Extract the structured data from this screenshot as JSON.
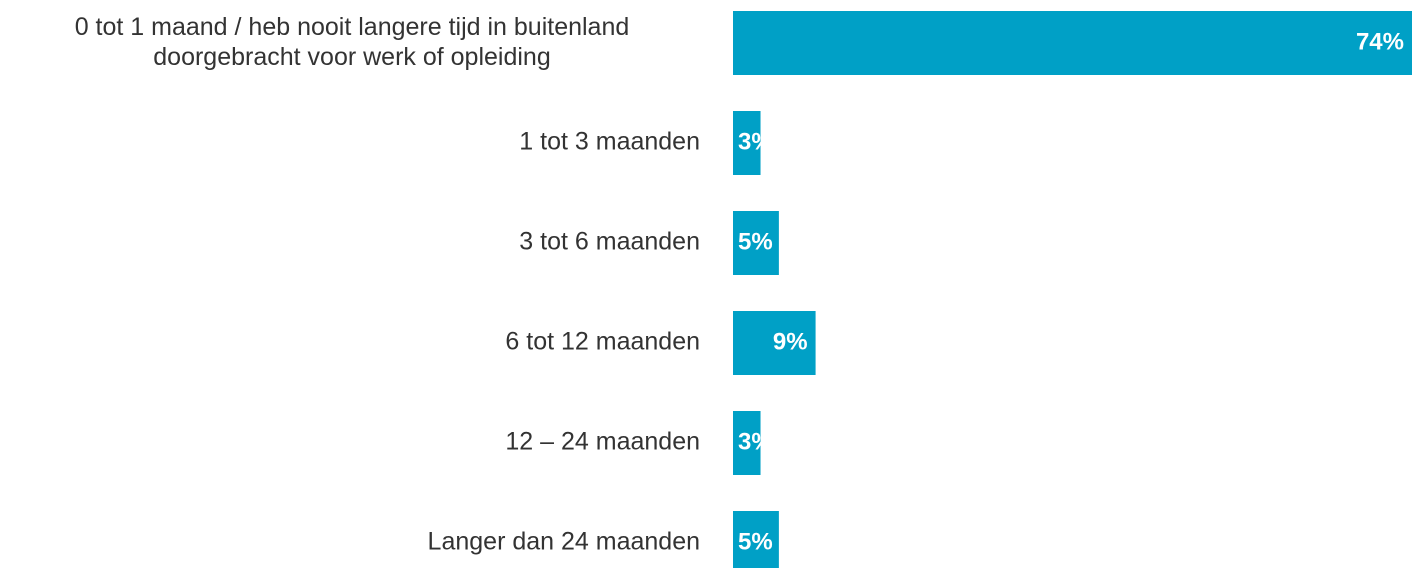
{
  "chart_data": {
    "type": "hbar",
    "categories": [
      "0 tot 1 maand / heb nooit langere tijd in buitenland\ndoorgebracht voor werk of opleiding",
      "1 tot 3 maanden",
      "3 tot 6 maanden",
      "6 tot 12 maanden",
      "12 – 24 maanden",
      "Langer dan 24 maanden"
    ],
    "values": [
      74,
      3,
      5,
      9,
      3,
      5
    ],
    "value_labels": [
      "74%",
      "3%",
      "5%",
      "9%",
      "3%",
      "5%"
    ],
    "color": "#00a0c6"
  }
}
